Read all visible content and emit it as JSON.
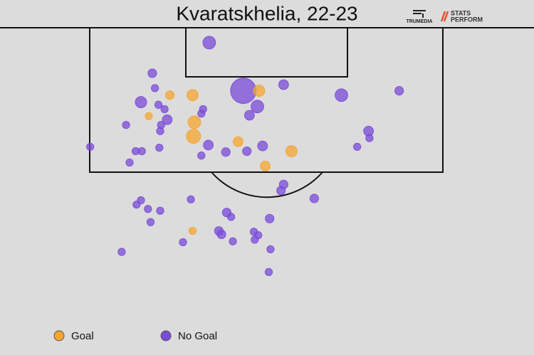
{
  "chart_data": {
    "type": "scatter",
    "title": "Kvaratskhelia, 22-23",
    "brands": [
      "TRUMEDIA",
      "STATS",
      "PERFORM"
    ],
    "xlim": [
      -30.5,
      30.5
    ],
    "ylim": [
      0,
      32.5
    ],
    "series": [
      {
        "name": "Goal",
        "color": "#f5a630",
        "x": [
          -11.1,
          -8.5,
          -0.9,
          -13.5,
          -8.3,
          -8.4,
          -3.3,
          2.8,
          -0.2,
          -8.5
        ],
        "y": [
          7.7,
          7.7,
          7.2,
          10.1,
          10.8,
          12.4,
          13.0,
          14.1,
          15.8,
          23.2
        ],
        "sizes": [
          0.07,
          0.12,
          0.12,
          0.05,
          0.15,
          0.19,
          0.09,
          0.12,
          0.09,
          0.05
        ]
      },
      {
        "name": "No Goal",
        "color": "#7a4bd8",
        "x": [
          -6.6,
          -13.1,
          -2.7,
          1.9,
          8.5,
          15.1,
          -12.8,
          -14.4,
          -12.4,
          -11.7,
          -11.4,
          -7.3,
          -7.5,
          -1.1,
          -2.0,
          -16.1,
          -12.1,
          -12.2,
          11.6,
          11.7,
          -20.2,
          -15.0,
          -14.3,
          -12.3,
          -6.7,
          -7.5,
          -4.7,
          -2.3,
          -0.5,
          10.3,
          -15.7,
          1.9,
          1.6,
          5.4,
          -8.7,
          -14.4,
          -14.9,
          -13.6,
          -12.2,
          -4.6,
          -4.1,
          0.3,
          -13.3,
          -5.5,
          -5.2,
          -1.5,
          -1.0,
          -1.4,
          -9.6,
          -3.9,
          0.4,
          -16.6,
          0.2
        ],
        "y": [
          1.7,
          5.2,
          7.2,
          6.5,
          7.7,
          7.2,
          6.9,
          8.5,
          8.8,
          9.3,
          10.5,
          9.3,
          9.8,
          9.0,
          10.0,
          11.1,
          11.1,
          11.8,
          11.8,
          12.6,
          13.6,
          14.1,
          14.1,
          13.7,
          13.4,
          14.6,
          14.2,
          14.1,
          13.5,
          13.6,
          15.4,
          17.9,
          18.6,
          19.5,
          19.6,
          19.7,
          20.2,
          20.7,
          20.9,
          21.1,
          21.6,
          21.8,
          22.2,
          23.2,
          23.6,
          23.3,
          23.7,
          24.2,
          24.5,
          24.4,
          25.3,
          25.6,
          27.9
        ],
        "sizes": [
          0.15,
          0.07,
          0.61,
          0.09,
          0.15,
          0.07,
          0.05,
          0.12,
          0.05,
          0.05,
          0.09,
          0.05,
          0.05,
          0.15,
          0.09,
          0.05,
          0.05,
          0.05,
          0.09,
          0.05,
          0.05,
          0.05,
          0.05,
          0.05,
          0.09,
          0.05,
          0.07,
          0.07,
          0.09,
          0.05,
          0.05,
          0.07,
          0.07,
          0.07,
          0.05,
          0.05,
          0.05,
          0.05,
          0.05,
          0.07,
          0.05,
          0.07,
          0.05,
          0.07,
          0.07,
          0.05,
          0.05,
          0.05,
          0.05,
          0.05,
          0.05,
          0.05,
          0.05
        ]
      }
    ]
  }
}
